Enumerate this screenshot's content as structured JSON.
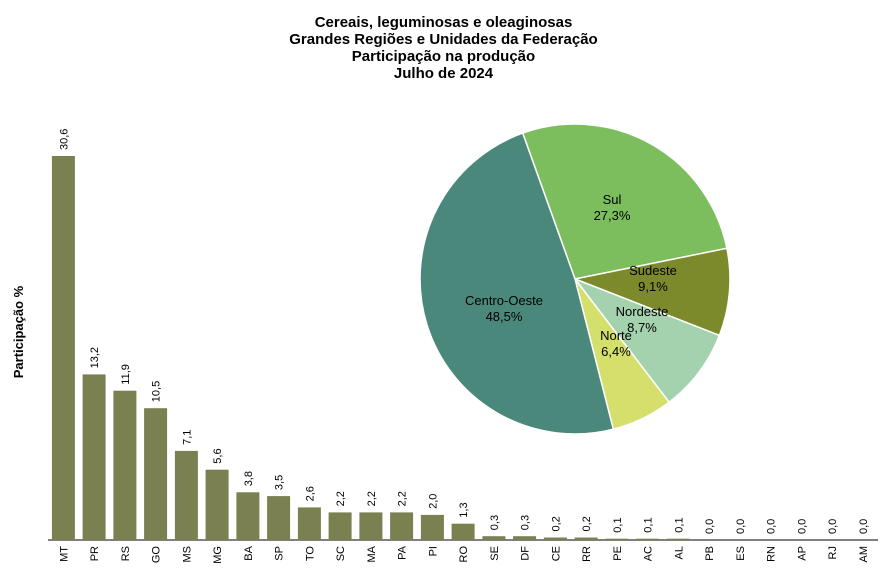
{
  "chart_data": [
    {
      "type": "bar",
      "title": [
        "Cereais, leguminosas e oleaginosas",
        "Grandes Regiões e Unidades da Federação",
        "Participação na produção",
        "Julho de 2024"
      ],
      "ylabel": "Participação %",
      "xlabel": "",
      "ylim": [
        0,
        31
      ],
      "grid": false,
      "color": "#7b8050",
      "categories": [
        "MT",
        "PR",
        "RS",
        "GO",
        "MS",
        "MG",
        "BA",
        "SP",
        "TO",
        "SC",
        "MA",
        "PA",
        "PI",
        "RO",
        "SE",
        "DF",
        "CE",
        "RR",
        "PE",
        "AC",
        "AL",
        "PB",
        "ES",
        "RN",
        "AP",
        "RJ",
        "AM"
      ],
      "values": [
        30.6,
        13.2,
        11.9,
        10.5,
        7.1,
        5.6,
        3.8,
        3.5,
        2.6,
        2.2,
        2.2,
        2.2,
        2.0,
        1.3,
        0.3,
        0.3,
        0.2,
        0.2,
        0.1,
        0.1,
        0.1,
        0.0,
        0.0,
        0.0,
        0.0,
        0.0,
        0.0
      ],
      "value_labels": [
        "30,6",
        "13,2",
        "11,9",
        "10,5",
        "7,1",
        "5,6",
        "3,8",
        "3,5",
        "2,6",
        "2,2",
        "2,2",
        "2,2",
        "2,0",
        "1,3",
        "0,3",
        "0,3",
        "0,2",
        "0,2",
        "0,1",
        "0,1",
        "0,1",
        "0,0",
        "0,0",
        "0,0",
        "0,0",
        "0,0",
        "0,0"
      ]
    },
    {
      "type": "pie",
      "slices": [
        {
          "name": "Sul",
          "value": 27.3,
          "label": "27,3%",
          "color": "#7cbd5e"
        },
        {
          "name": "Sudeste",
          "value": 9.1,
          "label": "9,1%",
          "color": "#7c8a2b"
        },
        {
          "name": "Nordeste",
          "value": 8.7,
          "label": "8,7%",
          "color": "#a4d1ae"
        },
        {
          "name": "Norte",
          "value": 6.4,
          "label": "6,4%",
          "color": "#d5df6c"
        },
        {
          "name": "Centro-Oeste",
          "value": 48.5,
          "label": "48,5%",
          "color": "#4a887c"
        }
      ]
    }
  ]
}
